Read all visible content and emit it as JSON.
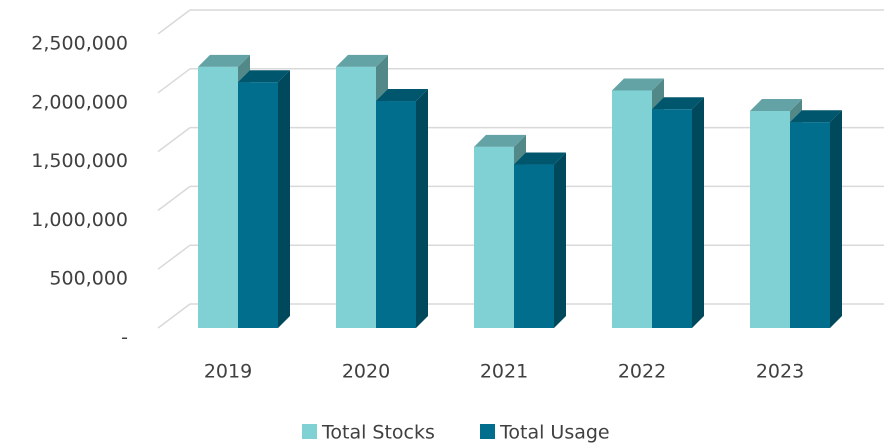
{
  "chart_data": {
    "type": "bar3d",
    "categories": [
      "2019",
      "2020",
      "2021",
      "2022",
      "2023"
    ],
    "series": [
      {
        "name": "Total Stocks",
        "color": "#7fd1d3",
        "values": [
          2220000,
          2220000,
          1540000,
          2020000,
          1845000
        ]
      },
      {
        "name": "Total Usage",
        "color": "#006e8c",
        "values": [
          2090000,
          1930000,
          1390000,
          1860000,
          1750000
        ]
      }
    ],
    "ylim": [
      0,
      2500000
    ],
    "yticks": [
      {
        "value": 0,
        "label": "-"
      },
      {
        "value": 500000,
        "label": "500,000"
      },
      {
        "value": 1000000,
        "label": "1,000,000"
      },
      {
        "value": 1500000,
        "label": "1,500,000"
      },
      {
        "value": 2000000,
        "label": "2,000,000"
      },
      {
        "value": 2500000,
        "label": "2,500,000"
      }
    ],
    "grid": true,
    "legend": "bottom"
  }
}
